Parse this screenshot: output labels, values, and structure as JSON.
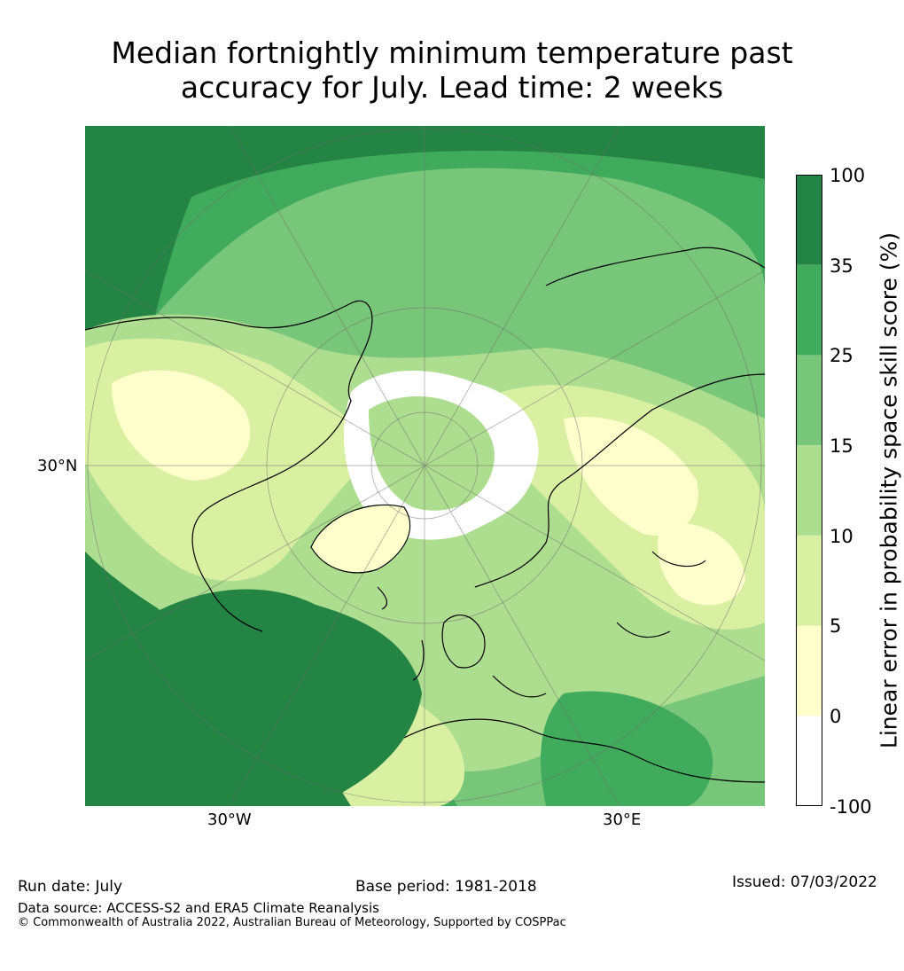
{
  "title_line1": "Median fortnightly minimum temperature past",
  "title_line2": "accuracy for July. Lead time: 2 weeks",
  "map": {
    "lat_label": "30°N",
    "lon_labels": [
      "30°W",
      "30°E"
    ],
    "projection": "north-polar stereographic",
    "graticule": true,
    "coastlines": true
  },
  "colorbar": {
    "label": "Linear error in probability space skill score (%)",
    "ticks": [
      "-100",
      "0",
      "5",
      "10",
      "15",
      "25",
      "35",
      "100"
    ],
    "bins": [
      {
        "from": -100,
        "to": 0,
        "color": "#ffffff"
      },
      {
        "from": 0,
        "to": 5,
        "color": "#ffffcc"
      },
      {
        "from": 5,
        "to": 10,
        "color": "#d9f0a3"
      },
      {
        "from": 10,
        "to": 15,
        "color": "#addd8e"
      },
      {
        "from": 15,
        "to": 25,
        "color": "#78c679"
      },
      {
        "from": 25,
        "to": 35,
        "color": "#41ab5d"
      },
      {
        "from": 35,
        "to": 100,
        "color": "#238443"
      }
    ]
  },
  "footer": {
    "run_date": "Run date: July",
    "base_period": "Base period: 1981-2018",
    "issued": "Issued: 07/03/2022",
    "data_source": "Data source: ACCESS-S2 and ERA5 Climate Reanalysis",
    "copyright": "© Commonwealth of Australia 2022, Australian Bureau of Meteorology, Supported by COSPPac"
  }
}
